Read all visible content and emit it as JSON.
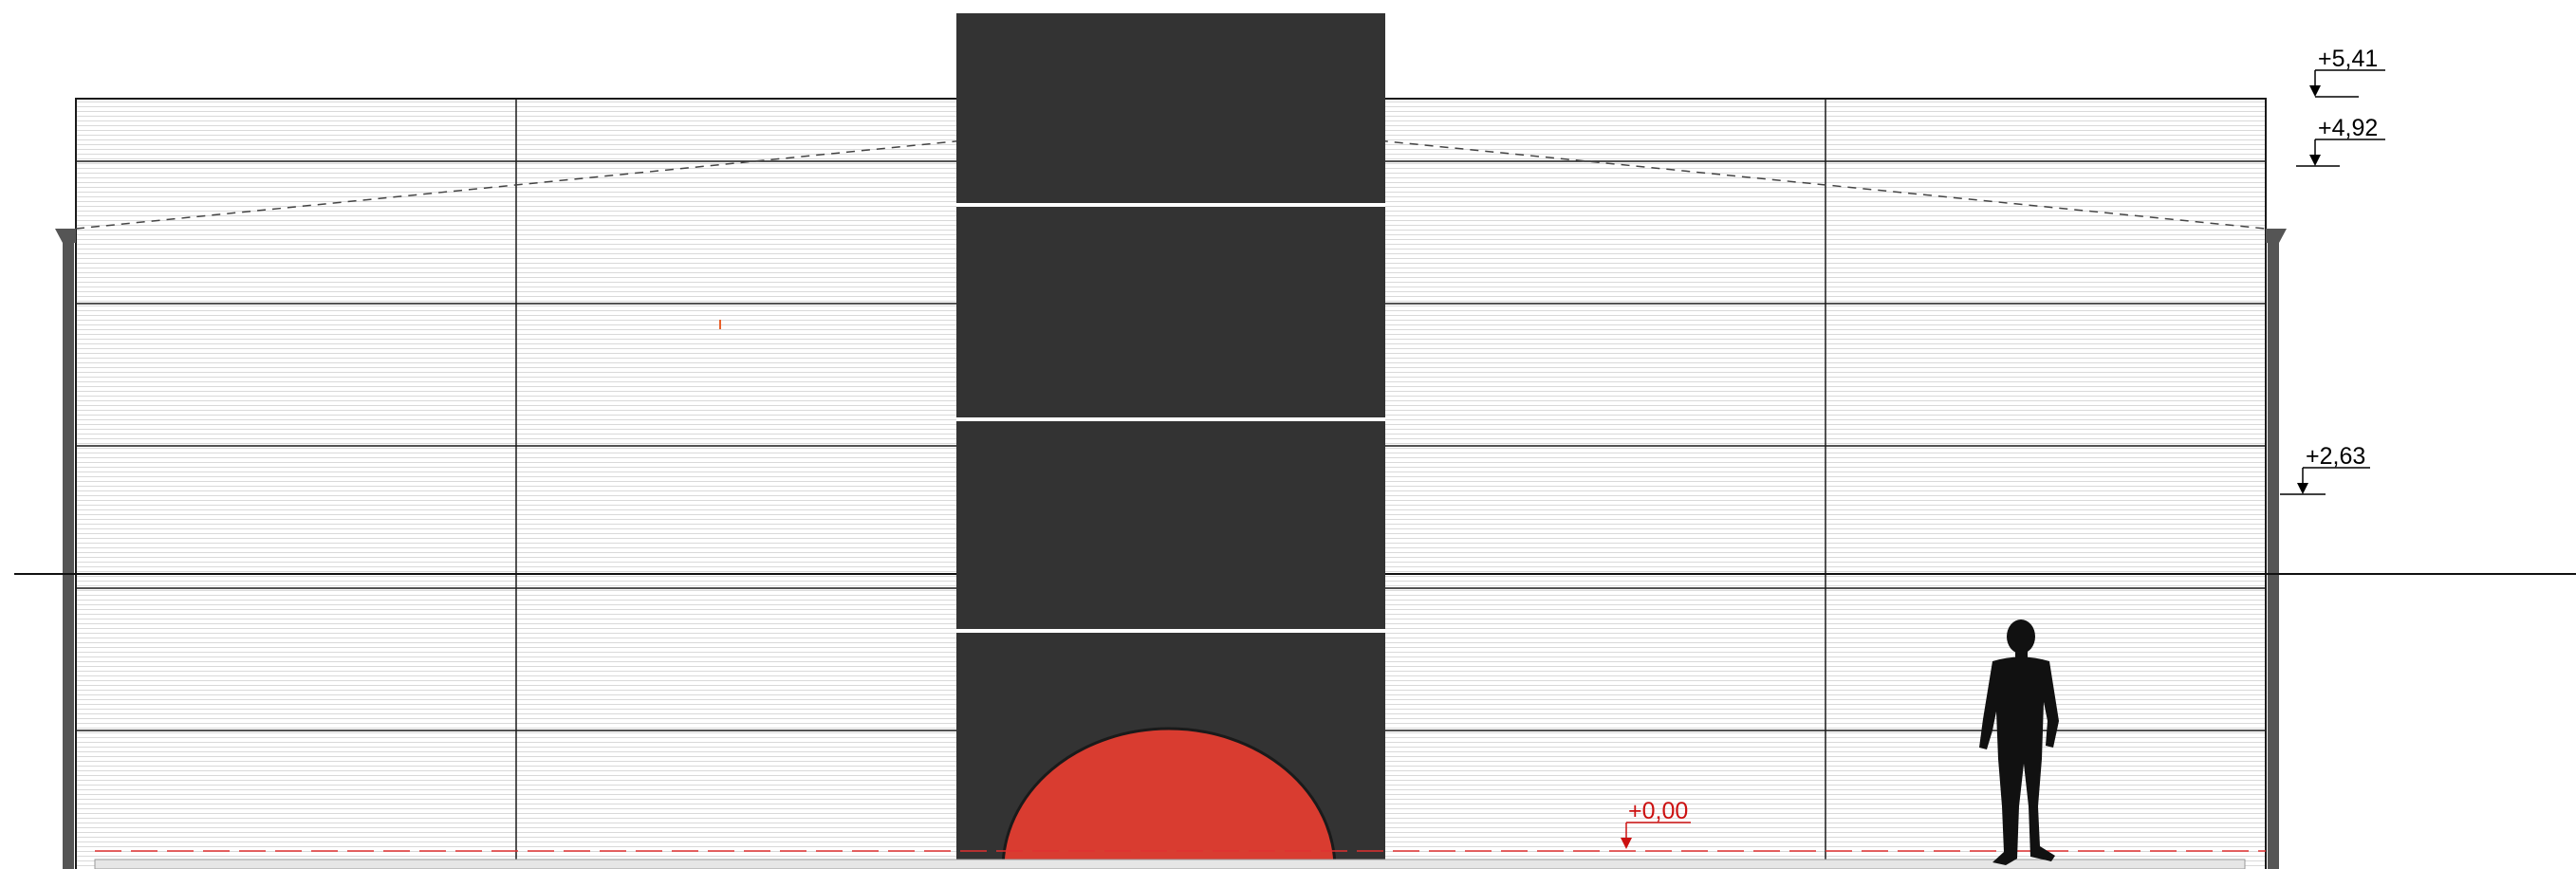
{
  "drawing": {
    "levels": [
      {
        "label": "+5,41",
        "color": "#000000"
      },
      {
        "label": "+4,92",
        "color": "#000000"
      },
      {
        "label": "+2,63",
        "color": "#000000"
      },
      {
        "label": "+0,00",
        "color": "#cc1111"
      }
    ],
    "colors": {
      "tower": "#333333",
      "arch": "#d93c30",
      "panel_hatch": "#d9d9d9",
      "grid_line": "#1a1a1a",
      "pillar": "#555555",
      "ground_datum": "#e03030"
    },
    "figure": {
      "type": "human-silhouette",
      "icon": "person-silhouette-icon"
    }
  }
}
